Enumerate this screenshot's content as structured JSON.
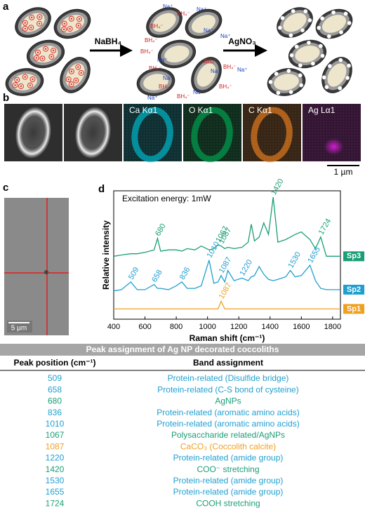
{
  "panel_letters": [
    "a",
    "b",
    "c",
    "d"
  ],
  "panel_a": {
    "reagents": [
      "NaBH₄",
      "AgNO₃"
    ],
    "ions": [
      "Na⁺",
      "BH₄⁻",
      "Na⁺",
      "BH₄⁻",
      "Na⁺",
      "BH₄⁻",
      "Na⁺",
      "BH₄⁻",
      "Na⁺",
      "BH₄⁻",
      "Na⁺",
      "BH₄⁻",
      "BH₄⁻",
      "Na⁺",
      "BH₄⁻",
      "Na⁺",
      "BH₄⁻",
      "Na⁺",
      "BH₄⁻",
      "Na⁺"
    ]
  },
  "panel_b": {
    "map_labels": [
      "Ca Kα1",
      "O Kα1",
      "C Kα1",
      "Ag Lα1"
    ],
    "scale_bar": "1 µm"
  },
  "panel_c": {
    "scale_bar": "5 µm"
  },
  "chart_data": {
    "type": "line",
    "annotation": "Excitation energy: 1mW",
    "x_label": "Raman shift (cm⁻¹)",
    "y_label": "Relative intensity",
    "x": [
      400,
      450,
      509,
      550,
      600,
      658,
      680,
      700,
      750,
      800,
      836,
      870,
      920,
      960,
      1010,
      1040,
      1067,
      1087,
      1110,
      1130,
      1170,
      1220,
      1260,
      1280,
      1300,
      1330,
      1360,
      1390,
      1420,
      1450,
      1500,
      1530,
      1560,
      1600,
      1655,
      1690,
      1724,
      1760,
      1800,
      1850
    ],
    "xlim": [
      400,
      1850
    ],
    "xticks": [
      400,
      600,
      800,
      1000,
      1200,
      1400,
      1600,
      1800
    ],
    "ylim": [
      0,
      100
    ],
    "series": [
      {
        "name": "Sp3",
        "color": "#1b9e77",
        "peaks": [
          680,
          1067,
          1087,
          1420,
          1724
        ],
        "values": [
          49,
          50,
          51,
          51,
          52,
          54,
          63,
          53,
          54,
          54,
          53,
          55,
          54,
          57,
          54,
          55,
          58,
          57,
          55,
          56,
          55,
          56,
          60,
          74,
          61,
          64,
          75,
          66,
          95,
          60,
          62,
          64,
          66,
          68,
          62,
          55,
          64,
          49,
          49,
          49
        ]
      },
      {
        "name": "Sp2",
        "color": "#1f9fd0",
        "peaks": [
          509,
          658,
          836,
          1010,
          1087,
          1220,
          1530,
          1655
        ],
        "values": [
          22,
          23,
          29,
          23,
          23,
          27,
          24,
          24,
          23,
          26,
          29,
          24,
          24,
          26,
          46,
          28,
          29,
          34,
          29,
          38,
          30,
          32,
          30,
          33,
          34,
          41,
          35,
          31,
          30,
          31,
          33,
          38,
          33,
          34,
          42,
          30,
          24,
          23,
          23,
          23
        ]
      },
      {
        "name": "Sp1",
        "color": "#f0a020",
        "peaks": [
          1087
        ],
        "values": [
          8,
          8,
          8,
          8,
          8,
          8,
          8,
          8,
          8,
          8,
          8,
          8,
          8,
          8,
          8,
          8,
          8,
          14,
          8,
          8,
          8,
          8,
          8,
          8,
          8,
          8,
          8,
          8,
          8,
          8,
          8,
          8,
          8,
          8,
          8,
          8,
          8,
          8,
          8,
          8
        ]
      }
    ]
  },
  "table": {
    "title": "Peak assignment of Ag NP decorated coccoliths",
    "headers": [
      "Peak position (cm⁻¹)",
      "Band assignment"
    ],
    "rows": [
      {
        "color": "#1f9fd0",
        "cells": [
          "509",
          "Protein-related (Disulfide bridge)"
        ]
      },
      {
        "color": "#1f9fd0",
        "cells": [
          "658",
          "Protein-related (C-S bond of cysteine)"
        ]
      },
      {
        "color": "#1b9e77",
        "cells": [
          "680",
          "AgNPs"
        ]
      },
      {
        "color": "#1f9fd0",
        "cells": [
          "836",
          "Protein-related (aromatic amino acids)"
        ]
      },
      {
        "color": "#1f9fd0",
        "cells": [
          "1010",
          "Protein-related (aromatic amino acids)"
        ]
      },
      {
        "color": "#1b9e77",
        "cells": [
          "1067",
          "Polysaccharide related/AgNPs"
        ]
      },
      {
        "color": "#f0a020",
        "cells": [
          "1087",
          "CaCO₃ (Coccolith calcite)"
        ]
      },
      {
        "color": "#1f9fd0",
        "cells": [
          "1220",
          "Protein-related (amide group)"
        ]
      },
      {
        "color": "#1b9e77",
        "cells": [
          "1420",
          "COO⁻ stretching"
        ]
      },
      {
        "color": "#1f9fd0",
        "cells": [
          "1530",
          "Protein-related (amide group)"
        ]
      },
      {
        "color": "#1f9fd0",
        "cells": [
          "1655",
          "Protein-related (amide group)"
        ]
      },
      {
        "color": "#1b9e77",
        "cells": [
          "1724",
          "COOH stretching"
        ]
      }
    ]
  }
}
